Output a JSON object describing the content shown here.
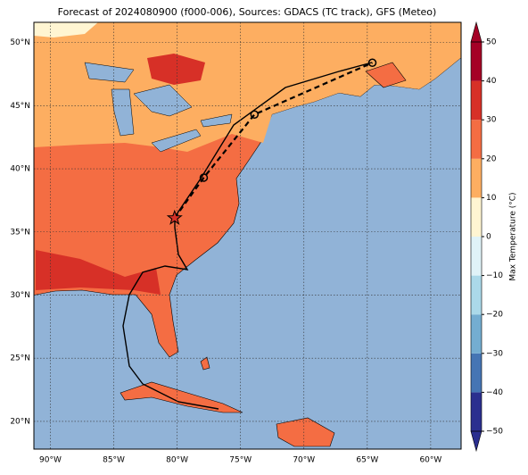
{
  "title": "Forecast of 2024080900 (f000-006), Sources: GDACS (TC track), GFS (Meteo)",
  "map": {
    "xlim": [
      -91.3,
      -57.6
    ],
    "ylim": [
      17.8,
      51.6
    ],
    "xticks": [
      {
        "value": -90,
        "label": "90°W"
      },
      {
        "value": -85,
        "label": "85°W"
      },
      {
        "value": -80,
        "label": "80°W"
      },
      {
        "value": -75,
        "label": "75°W"
      },
      {
        "value": -70,
        "label": "70°W"
      },
      {
        "value": -65,
        "label": "65°W"
      },
      {
        "value": -60,
        "label": "60°W"
      }
    ],
    "yticks": [
      {
        "value": 20,
        "label": "20°N"
      },
      {
        "value": 25,
        "label": "25°N"
      },
      {
        "value": 30,
        "label": "30°N"
      },
      {
        "value": 35,
        "label": "35°N"
      },
      {
        "value": 40,
        "label": "40°N"
      },
      {
        "value": 45,
        "label": "45°N"
      },
      {
        "value": 50,
        "label": "50°N"
      }
    ],
    "grid": true
  },
  "forecast_track": {
    "lon": [
      -80.2,
      -77.9,
      -73.9,
      -64.6
    ],
    "lat": [
      36.1,
      39.3,
      44.3,
      48.4
    ]
  },
  "colorbar": {
    "label": "Max Temperature (°C)",
    "lim": [
      -50,
      50
    ],
    "ticks": [
      {
        "value": -50,
        "label": "−50"
      },
      {
        "value": -40,
        "label": "−40"
      },
      {
        "value": -30,
        "label": "−30"
      },
      {
        "value": -20,
        "label": "−20"
      },
      {
        "value": -10,
        "label": "−10"
      },
      0,
      10,
      20,
      30,
      40,
      50
    ],
    "colors": [
      "#2b2f8f",
      "#4575b4",
      "#74add1",
      "#abd9e9",
      "#e0f3f8",
      "#fff5d2",
      "#fdae61",
      "#f46d43",
      "#d73027",
      "#a50026"
    ]
  }
}
